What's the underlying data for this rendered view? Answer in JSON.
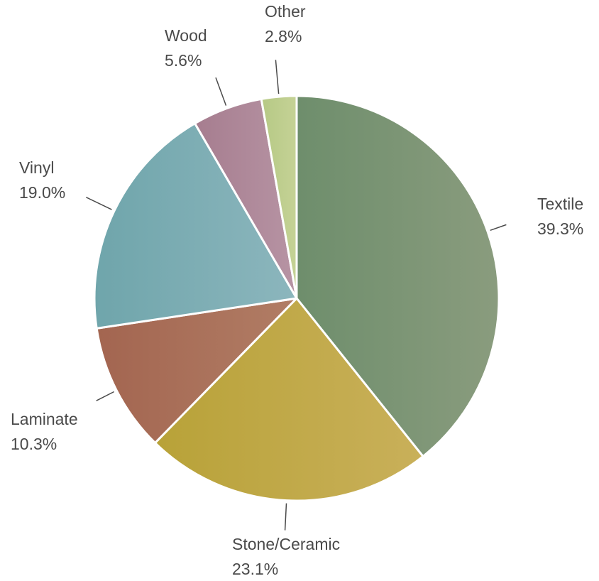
{
  "chart_data": {
    "type": "pie",
    "start_angle_deg": 0,
    "direction": "clockwise",
    "slices": [
      {
        "label": "Textile",
        "value": 39.3,
        "value_label": "39.3%",
        "color_start": "#6e8e6c",
        "color_end": "#8a9c7e"
      },
      {
        "label": "Stone/Ceramic",
        "value": 23.1,
        "value_label": "23.1%",
        "color_start": "#b8a238",
        "color_end": "#c9b05a"
      },
      {
        "label": "Laminate",
        "value": 10.3,
        "value_label": "10.3%",
        "color_start": "#a36550",
        "color_end": "#b17d65"
      },
      {
        "label": "Vinyl",
        "value": 19.0,
        "value_label": "19.0%",
        "color_start": "#6fa5ab",
        "color_end": "#8cb6bd"
      },
      {
        "label": "Wood",
        "value": 5.6,
        "value_label": "5.6%",
        "color_start": "#a67d8f",
        "color_end": "#b794a4"
      },
      {
        "label": "Other",
        "value": 2.8,
        "value_label": "2.8%",
        "color_start": "#b6c985",
        "color_end": "#c5d296"
      }
    ],
    "label_color": "#4a4a4a",
    "leader_line_color": "#4a4a4a",
    "slice_border_color": "#ffffff"
  }
}
